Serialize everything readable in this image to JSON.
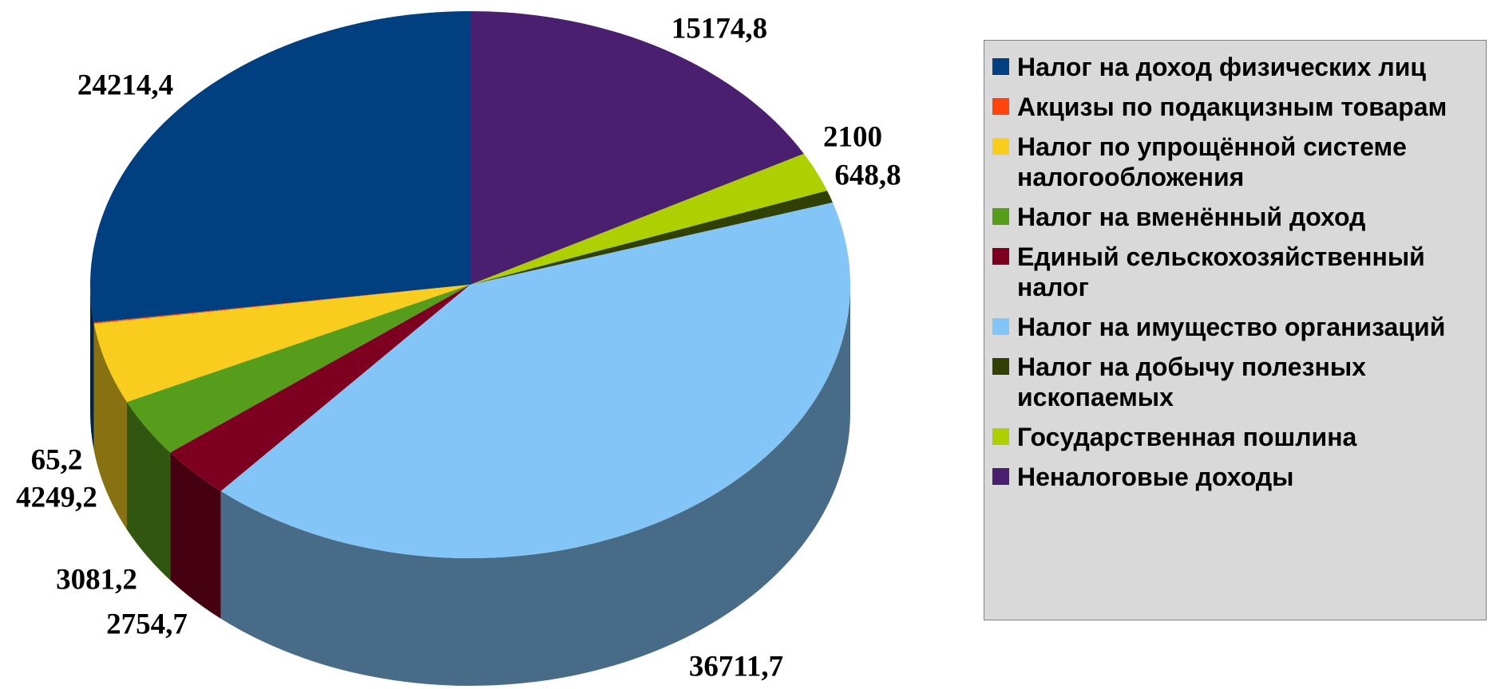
{
  "chart_data": {
    "type": "pie",
    "three_d": true,
    "legend": "right",
    "categories": [
      "Налог на доход физических лиц",
      "Акцизы по подакцизным товарам",
      "Налог по упрощённой системе налогообложения",
      "Налог на вменённый доход",
      "Единый сельскохозяйственный налог",
      "Налог на имущество организаций",
      "Налог на добычу полезных ископаемых",
      "Государственная пошлина",
      "Неналоговые доходы"
    ],
    "values": [
      24214.4,
      65.2,
      4249.2,
      3081.2,
      2754.7,
      36711.7,
      648.8,
      2100,
      15174.8
    ],
    "value_labels": [
      "24214,4",
      "65,2",
      "4249,2",
      "3081,2",
      "2754,7",
      "36711,7",
      "648,8",
      "2100",
      "15174,8"
    ],
    "colors": [
      "#004080",
      "#ff420e",
      "#f8cd1e",
      "#579d1c",
      "#7e0021",
      "#83c5f6",
      "#314004",
      "#aecf00",
      "#4b1f6f"
    ]
  }
}
